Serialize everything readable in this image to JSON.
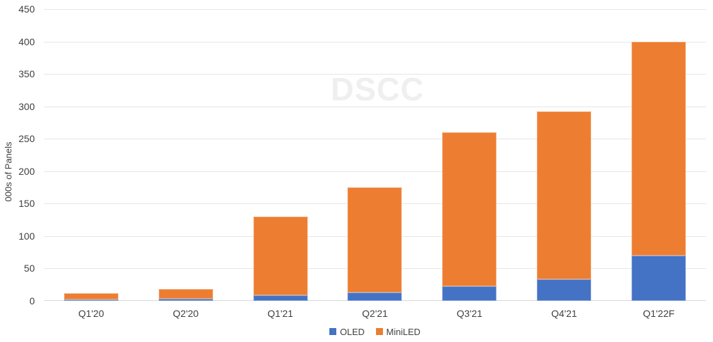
{
  "watermark": "DSCC",
  "colors": {
    "oled": "#4472C4",
    "miniled": "#ED7D31",
    "gridline": "#E6E6E6",
    "baseline": "#D9D9D9",
    "axis_text": "#404040",
    "watermark_color": "#EFEFEF"
  },
  "chart_data": {
    "type": "bar",
    "stacked": true,
    "title": "",
    "xlabel": "",
    "ylabel": "000s of Panels",
    "categories": [
      "Q1'20",
      "Q2'20",
      "Q1'21",
      "Q2'21",
      "Q3'21",
      "Q4'21",
      "Q1'22F"
    ],
    "series": [
      {
        "name": "OLED",
        "color": "#4472C4",
        "values": [
          2,
          3,
          9,
          13,
          23,
          33,
          70
        ]
      },
      {
        "name": "MiniLED",
        "color": "#ED7D31",
        "values": [
          10,
          15,
          121,
          162,
          237,
          259,
          330
        ]
      }
    ],
    "totals": [
      12,
      18,
      130,
      175,
      260,
      292,
      400
    ],
    "ylim": [
      0,
      450
    ],
    "ytick_step": 50,
    "grid": true,
    "legend_position": "bottom",
    "watermark": "DSCC"
  }
}
